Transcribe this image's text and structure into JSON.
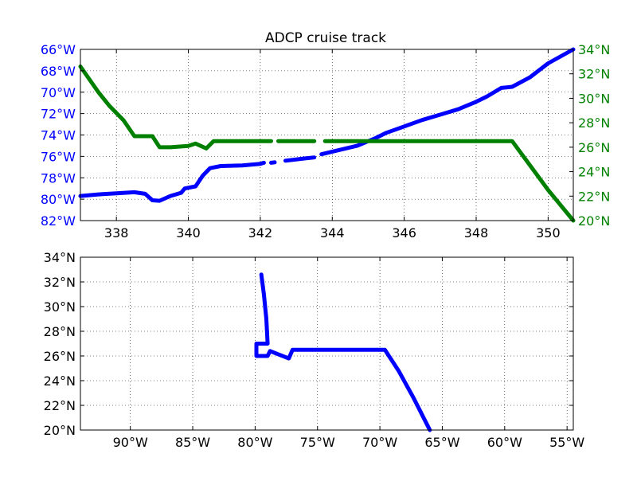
{
  "chart_data": [
    {
      "type": "line",
      "title": "ADCP cruise track",
      "xlabel": "",
      "xlim": [
        337.0,
        350.7
      ],
      "x_ticks": [
        "338",
        "340",
        "342",
        "344",
        "346",
        "348",
        "350"
      ],
      "x_tick_values": [
        338,
        340,
        342,
        344,
        346,
        348,
        350
      ],
      "grid": true,
      "left_axis": {
        "ylabel": "",
        "ylim": [
          -82,
          -66
        ],
        "tick_values": [
          -82,
          -80,
          -78,
          -76,
          -74,
          -72,
          -70,
          -68,
          -66
        ],
        "tick_labels": [
          "82°W",
          "80°W",
          "78°W",
          "76°W",
          "74°W",
          "72°W",
          "70°W",
          "68°W",
          "66°W"
        ],
        "color": "#0000ff"
      },
      "right_axis": {
        "ylabel": "",
        "ylim": [
          20,
          34
        ],
        "tick_values": [
          20,
          22,
          24,
          26,
          28,
          30,
          32,
          34
        ],
        "tick_labels": [
          "20°N",
          "22°N",
          "24°N",
          "26°N",
          "28°N",
          "30°N",
          "32°N",
          "34°N"
        ],
        "color": "#008000"
      },
      "series": [
        {
          "axis": "left",
          "color": "#0000ff",
          "segments": [
            [
              [
                337.0,
                -79.7
              ],
              [
                337.5,
                -79.55
              ],
              [
                338.0,
                -79.45
              ],
              [
                338.5,
                -79.35
              ],
              [
                338.8,
                -79.5
              ],
              [
                339.0,
                -80.1
              ],
              [
                339.2,
                -80.15
              ],
              [
                339.5,
                -79.7
              ],
              [
                339.8,
                -79.4
              ],
              [
                339.9,
                -79.0
              ],
              [
                340.2,
                -78.8
              ],
              [
                340.4,
                -77.8
              ],
              [
                340.6,
                -77.1
              ],
              [
                340.9,
                -76.9
              ],
              [
                341.5,
                -76.85
              ],
              [
                342.0,
                -76.7
              ],
              [
                342.1,
                -76.6
              ]
            ],
            [
              [
                342.3,
                -76.6
              ],
              [
                342.4,
                -76.55
              ]
            ],
            [
              [
                342.7,
                -76.4
              ],
              [
                343.2,
                -76.2
              ],
              [
                343.5,
                -76.1
              ]
            ],
            [
              [
                343.7,
                -75.8
              ],
              [
                344.2,
                -75.4
              ],
              [
                344.7,
                -75.0
              ],
              [
                345.2,
                -74.3
              ],
              [
                345.5,
                -73.8
              ],
              [
                346.0,
                -73.2
              ],
              [
                346.5,
                -72.6
              ],
              [
                347.0,
                -72.1
              ],
              [
                347.5,
                -71.6
              ],
              [
                348.0,
                -70.9
              ],
              [
                348.3,
                -70.4
              ],
              [
                348.7,
                -69.6
              ],
              [
                349.0,
                -69.5
              ],
              [
                349.5,
                -68.6
              ],
              [
                350.0,
                -67.3
              ],
              [
                350.7,
                -66.0
              ]
            ]
          ]
        },
        {
          "axis": "right",
          "color": "#008000",
          "segments": [
            [
              [
                337.0,
                32.6
              ],
              [
                337.5,
                30.5
              ],
              [
                337.8,
                29.4
              ],
              [
                338.2,
                28.2
              ],
              [
                338.5,
                26.9
              ],
              [
                339.0,
                26.9
              ],
              [
                339.2,
                26.0
              ],
              [
                339.5,
                26.0
              ],
              [
                340.0,
                26.1
              ],
              [
                340.2,
                26.3
              ],
              [
                340.5,
                25.9
              ],
              [
                340.7,
                26.5
              ],
              [
                341.5,
                26.5
              ],
              [
                342.0,
                26.5
              ],
              [
                342.3,
                26.5
              ]
            ],
            [
              [
                342.5,
                26.5
              ],
              [
                343.5,
                26.5
              ]
            ],
            [
              [
                343.8,
                26.5
              ],
              [
                345.0,
                26.5
              ],
              [
                347.0,
                26.5
              ],
              [
                348.5,
                26.5
              ],
              [
                349.0,
                26.5
              ],
              [
                349.5,
                24.5
              ],
              [
                350.0,
                22.5
              ],
              [
                350.7,
                20.0
              ]
            ]
          ]
        }
      ]
    },
    {
      "type": "line",
      "title": "",
      "xlabel": "",
      "ylabel": "",
      "xlim": [
        -94.0,
        -54.5
      ],
      "ylim": [
        20,
        34
      ],
      "x_tick_values": [
        -90,
        -85,
        -80,
        -75,
        -70,
        -65,
        -60,
        -55
      ],
      "x_tick_labels": [
        "90°W",
        "85°W",
        "80°W",
        "75°W",
        "70°W",
        "65°W",
        "60°W",
        "55°W"
      ],
      "y_tick_values": [
        20,
        22,
        24,
        26,
        28,
        30,
        32,
        34
      ],
      "y_tick_labels": [
        "20°N",
        "22°N",
        "24°N",
        "26°N",
        "28°N",
        "30°N",
        "32°N",
        "34°N"
      ],
      "grid": true,
      "series": [
        {
          "color": "#0000ff",
          "points": [
            [
              -79.5,
              32.6
            ],
            [
              -79.3,
              31.0
            ],
            [
              -79.1,
              29.0
            ],
            [
              -79.0,
              27.0
            ],
            [
              -79.9,
              27.0
            ],
            [
              -79.9,
              26.0
            ],
            [
              -79.0,
              26.0
            ],
            [
              -78.8,
              26.4
            ],
            [
              -78.3,
              26.2
            ],
            [
              -77.3,
              25.8
            ],
            [
              -77.0,
              26.5
            ],
            [
              -75.0,
              26.5
            ],
            [
              -72.0,
              26.5
            ],
            [
              -69.6,
              26.5
            ],
            [
              -68.5,
              24.8
            ],
            [
              -67.3,
              22.6
            ],
            [
              -66.0,
              20.0
            ]
          ]
        }
      ]
    }
  ]
}
